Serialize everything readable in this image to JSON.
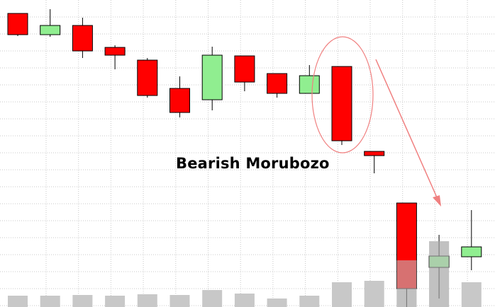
{
  "chart_data": {
    "type": "candlestick",
    "title": "",
    "xlabel": "",
    "ylabel": "",
    "grid": true,
    "annotation": "Bearish Morubozo",
    "colors": {
      "bullish": "#90ee90",
      "bearish": "#ff0000",
      "volume": "#c8c8c8",
      "grid": "#c8c8c8",
      "highlight": "#f08080"
    },
    "ylim": [
      0,
      434
    ],
    "candles": [
      {
        "open": 415,
        "high": 415,
        "low": 383,
        "close": 385
      },
      {
        "open": 385,
        "high": 421,
        "low": 382,
        "close": 398
      },
      {
        "open": 398,
        "high": 409,
        "low": 352,
        "close": 362
      },
      {
        "open": 367,
        "high": 370,
        "low": 336,
        "close": 356
      },
      {
        "open": 349,
        "high": 352,
        "low": 296,
        "close": 299
      },
      {
        "open": 309,
        "high": 326,
        "low": 268,
        "close": 275
      },
      {
        "open": 293,
        "high": 368,
        "low": 278,
        "close": 356
      },
      {
        "open": 355,
        "high": 355,
        "low": 305,
        "close": 318
      },
      {
        "open": 330,
        "high": 330,
        "low": 296,
        "close": 302
      },
      {
        "open": 302,
        "high": 342,
        "low": 302,
        "close": 327
      },
      {
        "open": 340,
        "high": 340,
        "low": 229,
        "close": 235
      },
      {
        "open": 220,
        "high": 220,
        "low": 189,
        "close": 214
      },
      {
        "open": 147,
        "high": 147,
        "low": 0,
        "close": 26
      },
      {
        "open": 56,
        "high": 102,
        "low": 12,
        "close": 72
      },
      {
        "open": 71,
        "high": 137,
        "low": 52,
        "close": 85
      }
    ],
    "volume": [
      16,
      16,
      17,
      16,
      18,
      17,
      24,
      19,
      12,
      16,
      35,
      37,
      66,
      93,
      35
    ]
  }
}
